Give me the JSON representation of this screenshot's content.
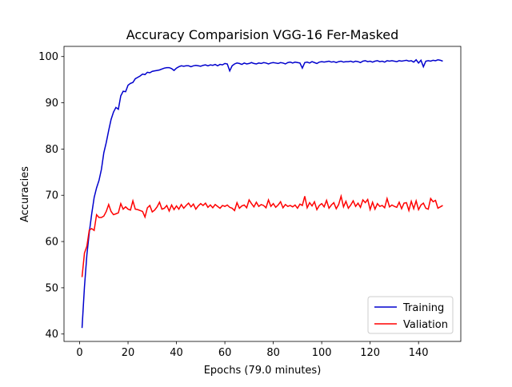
{
  "chart_data": {
    "type": "line",
    "title": "Accuracy Comparision VGG-16 Fer-Masked",
    "x_label": "Epochs (79.0 minutes)",
    "y_label": "Accuracies",
    "x": [
      1,
      2,
      3,
      4,
      5,
      6,
      7,
      8,
      9,
      10,
      11,
      12,
      13,
      14,
      15,
      16,
      17,
      18,
      19,
      20,
      21,
      22,
      23,
      24,
      25,
      26,
      27,
      28,
      29,
      30,
      31,
      32,
      33,
      34,
      35,
      36,
      37,
      38,
      39,
      40,
      41,
      42,
      43,
      44,
      45,
      46,
      47,
      48,
      49,
      50,
      51,
      52,
      53,
      54,
      55,
      56,
      57,
      58,
      59,
      60,
      61,
      62,
      63,
      64,
      65,
      66,
      67,
      68,
      69,
      70,
      71,
      72,
      73,
      74,
      75,
      76,
      77,
      78,
      79,
      80,
      81,
      82,
      83,
      84,
      85,
      86,
      87,
      88,
      89,
      90,
      91,
      92,
      93,
      94,
      95,
      96,
      97,
      98,
      99,
      100,
      101,
      102,
      103,
      104,
      105,
      106,
      107,
      108,
      109,
      110,
      111,
      112,
      113,
      114,
      115,
      116,
      117,
      118,
      119,
      120,
      121,
      122,
      123,
      124,
      125,
      126,
      127,
      128,
      129,
      130,
      131,
      132,
      133,
      134,
      135,
      136,
      137,
      138,
      139,
      140,
      141,
      142,
      143,
      144,
      145,
      146,
      147,
      148,
      149,
      150
    ],
    "series": [
      {
        "name": "Training",
        "color": "#0000cd",
        "values": [
          41.3,
          50.2,
          57.1,
          62.0,
          66.0,
          69.5,
          71.6,
          73.2,
          75.6,
          79.2,
          81.4,
          84.0,
          86.4,
          88.0,
          89.0,
          88.6,
          91.5,
          92.5,
          92.4,
          93.8,
          94.2,
          94.4,
          95.2,
          95.5,
          95.8,
          96.2,
          96.1,
          96.6,
          96.5,
          96.8,
          96.9,
          97.0,
          97.1,
          97.3,
          97.5,
          97.6,
          97.6,
          97.4,
          97.0,
          97.5,
          97.8,
          98.0,
          97.9,
          98.0,
          98.0,
          97.8,
          98.0,
          98.1,
          98.0,
          97.9,
          98.1,
          98.2,
          98.0,
          98.2,
          98.1,
          98.3,
          98.0,
          98.3,
          98.2,
          98.5,
          98.4,
          96.9,
          98.0,
          98.4,
          98.6,
          98.5,
          98.3,
          98.6,
          98.4,
          98.5,
          98.7,
          98.5,
          98.4,
          98.6,
          98.5,
          98.7,
          98.6,
          98.4,
          98.6,
          98.7,
          98.6,
          98.5,
          98.7,
          98.6,
          98.4,
          98.7,
          98.8,
          98.6,
          98.8,
          98.7,
          98.6,
          97.5,
          98.7,
          98.8,
          98.6,
          98.9,
          98.7,
          98.5,
          98.8,
          98.9,
          98.8,
          98.9,
          99.0,
          98.8,
          98.9,
          98.7,
          98.9,
          99.0,
          98.8,
          98.9,
          98.9,
          99.0,
          98.8,
          99.0,
          98.9,
          98.7,
          99.0,
          99.1,
          98.9,
          99.0,
          98.8,
          99.0,
          99.1,
          98.9,
          99.0,
          98.8,
          99.1,
          99.0,
          99.1,
          99.0,
          98.9,
          99.1,
          99.0,
          99.1,
          99.2,
          99.0,
          99.1,
          98.8,
          99.3,
          98.6,
          99.2,
          97.8,
          99.0,
          99.1,
          99.0,
          99.2,
          99.1,
          99.3,
          99.2,
          99.0
        ]
      },
      {
        "name": "Valiation",
        "color": "#ff0000",
        "values": [
          52.3,
          57.5,
          59.0,
          62.5,
          62.8,
          62.4,
          65.8,
          65.2,
          65.2,
          65.5,
          66.5,
          68.0,
          66.5,
          65.8,
          66.0,
          66.2,
          68.2,
          67.0,
          67.5,
          67.0,
          66.8,
          68.8,
          67.0,
          66.9,
          66.7,
          66.5,
          65.3,
          67.3,
          67.8,
          66.4,
          66.8,
          67.5,
          68.5,
          67.0,
          67.2,
          67.8,
          66.6,
          67.9,
          66.9,
          67.7,
          67.0,
          68.0,
          67.2,
          67.8,
          68.3,
          67.5,
          68.1,
          67.0,
          67.7,
          68.2,
          67.8,
          68.3,
          67.4,
          67.9,
          67.3,
          68.0,
          67.6,
          67.2,
          67.8,
          67.6,
          67.9,
          67.4,
          67.2,
          66.7,
          68.4,
          67.2,
          67.7,
          67.9,
          67.3,
          69.0,
          68.2,
          67.5,
          68.5,
          67.6,
          68.0,
          67.8,
          67.3,
          69.0,
          67.6,
          68.2,
          67.4,
          67.9,
          68.6,
          67.3,
          68.0,
          67.6,
          67.8,
          67.5,
          67.9,
          67.2,
          68.1,
          67.8,
          69.8,
          67.3,
          68.4,
          67.7,
          68.6,
          66.9,
          67.8,
          68.2,
          67.5,
          68.9,
          67.2,
          67.9,
          68.4,
          67.1,
          68.0,
          69.8,
          67.5,
          68.7,
          67.2,
          67.9,
          68.8,
          67.6,
          68.3,
          67.4,
          69.0,
          68.4,
          69.1,
          66.9,
          68.5,
          67.0,
          68.2,
          67.6,
          67.8,
          67.3,
          69.3,
          67.5,
          67.9,
          67.6,
          67.4,
          68.5,
          67.1,
          68.3,
          68.4,
          66.7,
          68.7,
          67.1,
          68.8,
          66.9,
          67.9,
          68.3,
          67.2,
          67.0,
          69.3,
          68.6,
          68.9,
          67.2,
          67.5,
          67.8
        ]
      }
    ],
    "xlim": [
      -6.45,
      157.45
    ],
    "ylim": [
      38.4,
      102.2
    ],
    "xticks": [
      0,
      20,
      40,
      60,
      80,
      100,
      120,
      140
    ],
    "yticks": [
      40,
      50,
      60,
      70,
      80,
      90,
      100
    ],
    "legend": "lower right"
  }
}
